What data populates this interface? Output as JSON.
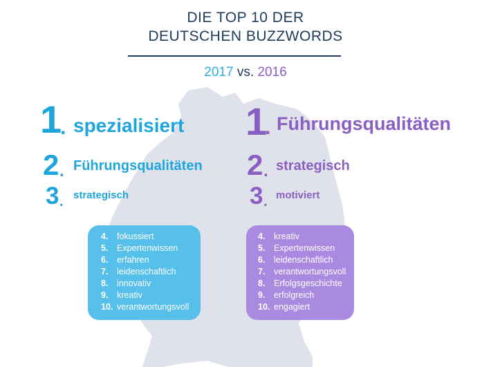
{
  "header": {
    "title_line1": "DIE TOP 10 DER",
    "title_line2": "DEUTSCHEN BUZZWORDS",
    "year_current": "2017",
    "vs": "vs.",
    "year_previous": "2016"
  },
  "colors": {
    "blue": "#1ea6dc",
    "purple": "#8a5fc2",
    "navy": "#1f3a5a",
    "map": "#dfe2ea"
  },
  "ranking_2017": {
    "top": [
      {
        "rank": "1",
        "dot": ".",
        "word": "spezialisiert"
      },
      {
        "rank": "2",
        "dot": ".",
        "word": "Führungsqualitäten"
      },
      {
        "rank": "3",
        "dot": ".",
        "word": "strategisch"
      }
    ],
    "rest": [
      {
        "rank": "4.",
        "word": "fokussiert"
      },
      {
        "rank": "5.",
        "word": "Expertenwissen"
      },
      {
        "rank": "6.",
        "word": "erfahren"
      },
      {
        "rank": "7.",
        "word": "leidenschaftlich"
      },
      {
        "rank": "8.",
        "word": "innovativ"
      },
      {
        "rank": "9.",
        "word": "kreativ"
      },
      {
        "rank": "10.",
        "word": "verantwortungsvoll"
      }
    ]
  },
  "ranking_2016": {
    "top": [
      {
        "rank": "1",
        "dot": ".",
        "word": "Führungsqualitäten"
      },
      {
        "rank": "2",
        "dot": ".",
        "word": "strategisch"
      },
      {
        "rank": "3",
        "dot": ".",
        "word": "motiviert"
      }
    ],
    "rest": [
      {
        "rank": "4.",
        "word": "kreativ"
      },
      {
        "rank": "5.",
        "word": "Expertenwissen"
      },
      {
        "rank": "6.",
        "word": "leidenschaftlich"
      },
      {
        "rank": "7.",
        "word": "verantwortungsvoll"
      },
      {
        "rank": "8.",
        "word": "Erfolgsgeschichte"
      },
      {
        "rank": "9.",
        "word": "erfolgreich"
      },
      {
        "rank": "10.",
        "word": "engagiert"
      }
    ]
  }
}
